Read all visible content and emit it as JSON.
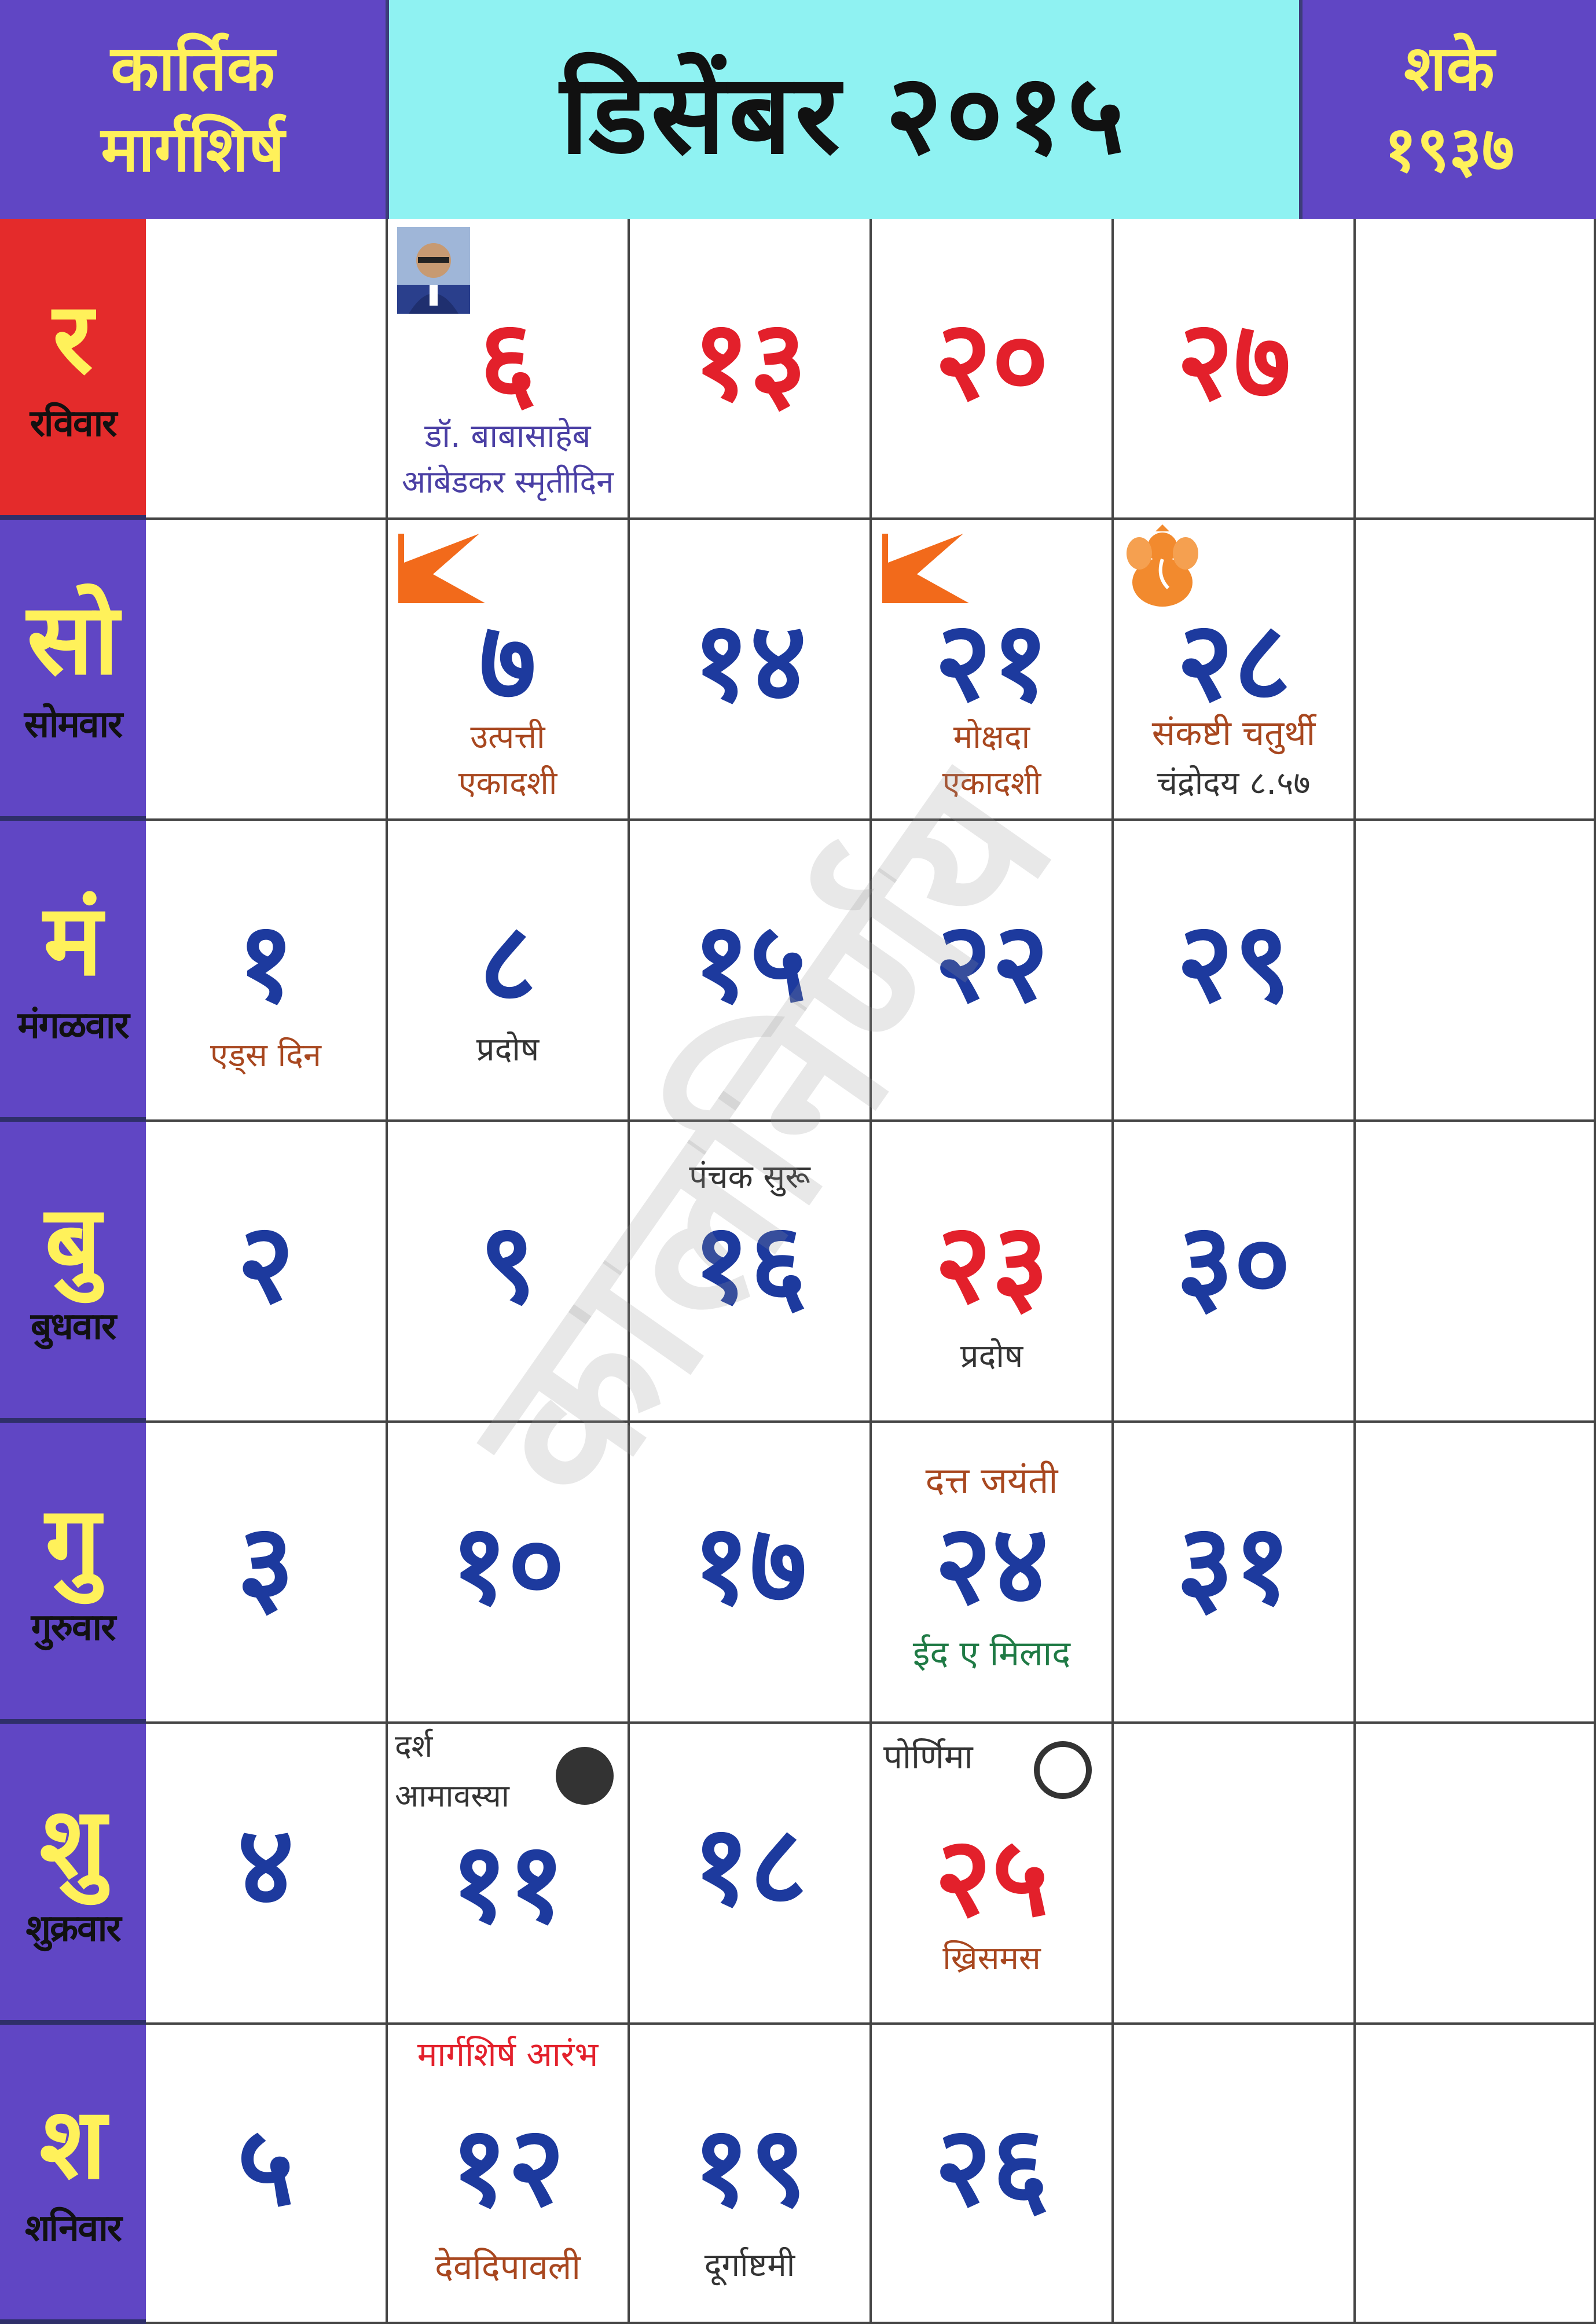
{
  "header": {
    "left_line1": "कार्तिक",
    "left_line2": "मार्गशिर्ष",
    "title": "डिसेंबर २०१५",
    "right_line1": "शके",
    "right_line2": "१९३७"
  },
  "days": [
    {
      "letter": "र",
      "name": "रविवार"
    },
    {
      "letter": "सो",
      "name": "सोमवार"
    },
    {
      "letter": "मं",
      "name": "मंगळवार"
    },
    {
      "letter": "बु",
      "name": "बुधवार"
    },
    {
      "letter": "गु",
      "name": "गुरुवार"
    },
    {
      "letter": "शु",
      "name": "शुक्रवार"
    },
    {
      "letter": "श",
      "name": "शनिवार"
    }
  ],
  "dates": {
    "d1": "१",
    "d2": "२",
    "d3": "३",
    "d4": "४",
    "d5": "५",
    "d6": "६",
    "d7": "७",
    "d8": "८",
    "d9": "९",
    "d10": "१०",
    "d11": "११",
    "d12": "१२",
    "d13": "१३",
    "d14": "१४",
    "d15": "१५",
    "d16": "१६",
    "d17": "१७",
    "d18": "१८",
    "d19": "१९",
    "d20": "२०",
    "d21": "२१",
    "d22": "२२",
    "d23": "२३",
    "d24": "२४",
    "d25": "२५",
    "d26": "२६",
    "d27": "२७",
    "d28": "२८",
    "d29": "२९",
    "d30": "३०",
    "d31": "३१"
  },
  "notes": {
    "d1": "एड्स दिन",
    "d6_line1": "डॉ. बाबासाहेब",
    "d6_line2": "आंबेडकर स्मृतीदिन",
    "d7_line1": "उत्पत्ती",
    "d7_line2": "एकादशी",
    "d8": "प्रदोष",
    "d11_line1": "दर्श",
    "d11_line2": "आमावस्या",
    "d12_top": "मार्गशिर्ष आरंभ",
    "d12_bottom": "देवदिपावली",
    "d16": "पंचक सुरू",
    "d19": "दूर्गाष्टमी",
    "d21_line1": "मोक्षदा",
    "d21_line2": "एकादशी",
    "d23": "प्रदोष",
    "d24_top": "दत्त जयंती",
    "d24_bottom": "ईद ए मिलाद",
    "d25_top": "पोर्णिमा",
    "d25_bottom": "ख्रिसमस",
    "d28_line1": "संकष्टी चतुर्थी",
    "d28_line2": "चंद्रोदय ८.५७"
  },
  "watermark": "कालनिर्णय",
  "icons": {
    "flag": "saffron-flag-icon",
    "ganesh": "ganesh-icon",
    "portrait": "ambedkar-portrait",
    "new_moon": "new-moon-icon",
    "full_moon": "full-moon-icon"
  },
  "colors": {
    "header_purple": "#6046c4",
    "header_cyan": "#8ff2f2",
    "sunday_red": "#e42b2b",
    "date_blue": "#1d3a9e",
    "date_red": "#e3202b",
    "label_yellow": "#fff15a",
    "flag_orange": "#f26a1b"
  }
}
